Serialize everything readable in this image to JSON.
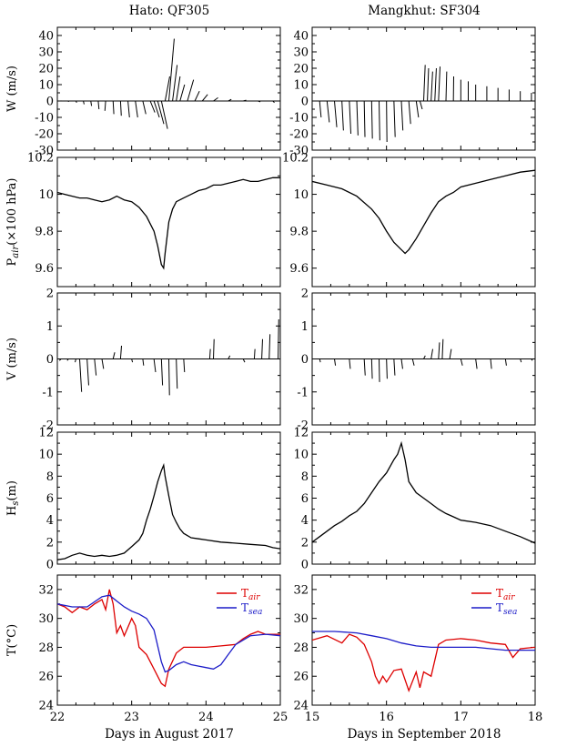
{
  "figure": {
    "left_title": "Hato: QF305",
    "right_title": "Mangkhut: SF304",
    "left_xlabel": "Days in August 2017",
    "right_xlabel": "Days in September 2018",
    "left_xticks": [
      "22",
      "23",
      "24",
      "25"
    ],
    "right_xticks": [
      "15",
      "16",
      "17",
      "18"
    ]
  },
  "chart_data": [
    {
      "type": "line",
      "variant": "stick-vector",
      "panel": "hato-wind",
      "ylabel": "W (m/s)",
      "xlim": [
        22,
        25
      ],
      "ylim": [
        -30,
        45
      ],
      "yticks": [
        "-30",
        "-20",
        "-10",
        "0",
        "10",
        "20",
        "30",
        "40"
      ],
      "sticks": [
        [
          22.05,
          0,
          0.3
        ],
        [
          22.15,
          0,
          -0.5
        ],
        [
          22.25,
          0.05,
          -1
        ],
        [
          22.35,
          0.05,
          -2
        ],
        [
          22.45,
          0.05,
          -3
        ],
        [
          22.55,
          0.05,
          -5
        ],
        [
          22.65,
          -0.05,
          -6
        ],
        [
          22.75,
          0.05,
          -8
        ],
        [
          22.85,
          0.05,
          -9
        ],
        [
          22.95,
          0.1,
          -10
        ],
        [
          23.05,
          0.15,
          -10
        ],
        [
          23.15,
          0.2,
          -8
        ],
        [
          23.25,
          0.3,
          -7
        ],
        [
          23.3,
          0.35,
          -10
        ],
        [
          23.35,
          0.4,
          -14
        ],
        [
          23.4,
          0.4,
          -17
        ],
        [
          23.45,
          0.3,
          15
        ],
        [
          23.5,
          0.35,
          38
        ],
        [
          23.55,
          0.3,
          22
        ],
        [
          23.6,
          0.25,
          15
        ],
        [
          23.65,
          0.3,
          10
        ],
        [
          23.75,
          0.4,
          13
        ],
        [
          23.85,
          0.3,
          6
        ],
        [
          23.95,
          0.35,
          4
        ],
        [
          24.1,
          0.3,
          2
        ],
        [
          24.3,
          0.2,
          1
        ],
        [
          24.5,
          0.2,
          0.5
        ],
        [
          24.7,
          0.15,
          -0.5
        ],
        [
          24.9,
          0.1,
          -1
        ],
        [
          25.0,
          0.05,
          -0.5
        ]
      ]
    },
    {
      "type": "line",
      "variant": "stick-vector",
      "panel": "mangkhut-wind",
      "ylabel": "W (m/s)",
      "xlim": [
        15,
        18
      ],
      "ylim": [
        -30,
        45
      ],
      "yticks": [
        "-30",
        "-20",
        "-10",
        "0",
        "10",
        "20",
        "30",
        "40"
      ],
      "sticks": [
        [
          15.0,
          -0.1,
          -8
        ],
        [
          15.1,
          0.1,
          -10
        ],
        [
          15.2,
          0.15,
          -13
        ],
        [
          15.3,
          0.15,
          -16
        ],
        [
          15.4,
          0.1,
          -18
        ],
        [
          15.5,
          0.1,
          -20
        ],
        [
          15.6,
          0.08,
          -21
        ],
        [
          15.7,
          0.05,
          -22
        ],
        [
          15.8,
          0.05,
          -23
        ],
        [
          15.9,
          0.05,
          -24
        ],
        [
          16.0,
          0.03,
          -25
        ],
        [
          16.1,
          0.08,
          -22
        ],
        [
          16.2,
          0.1,
          -18
        ],
        [
          16.3,
          0.12,
          -14
        ],
        [
          16.4,
          0.15,
          -10
        ],
        [
          16.45,
          0.15,
          -5
        ],
        [
          16.5,
          0.1,
          22
        ],
        [
          16.55,
          0.08,
          20
        ],
        [
          16.6,
          0.1,
          18
        ],
        [
          16.65,
          0.1,
          20
        ],
        [
          16.7,
          0.1,
          21
        ],
        [
          16.8,
          0.05,
          18
        ],
        [
          16.9,
          0.02,
          15
        ],
        [
          17.0,
          0.0,
          13
        ],
        [
          17.1,
          0.0,
          12
        ],
        [
          17.2,
          0.0,
          10
        ],
        [
          17.35,
          0.0,
          9
        ],
        [
          17.5,
          0.0,
          8
        ],
        [
          17.65,
          0.0,
          7
        ],
        [
          17.8,
          0.0,
          6
        ],
        [
          17.95,
          0.0,
          5
        ]
      ]
    },
    {
      "type": "line",
      "panel": "hato-pressure",
      "ylabel": "P_air(×100 hPa)",
      "ylabel_main": "P",
      "ylabel_sub": "air",
      "ylabel_rest": "(×100 hPa)",
      "xlim": [
        22,
        25
      ],
      "ylim": [
        9.5,
        10.2
      ],
      "yticks": [
        "9.6",
        "9.8",
        "10",
        "10.2"
      ],
      "x": [
        22.0,
        22.1,
        22.2,
        22.3,
        22.4,
        22.5,
        22.6,
        22.7,
        22.8,
        22.9,
        23.0,
        23.1,
        23.2,
        23.3,
        23.35,
        23.4,
        23.43,
        23.45,
        23.5,
        23.55,
        23.6,
        23.7,
        23.8,
        23.9,
        24.0,
        24.1,
        24.2,
        24.3,
        24.4,
        24.5,
        24.6,
        24.7,
        24.8,
        24.9,
        25.0
      ],
      "y": [
        10.01,
        10.0,
        9.99,
        9.98,
        9.98,
        9.97,
        9.96,
        9.97,
        9.99,
        9.97,
        9.96,
        9.93,
        9.88,
        9.8,
        9.72,
        9.62,
        9.6,
        9.68,
        9.85,
        9.92,
        9.96,
        9.98,
        10.0,
        10.02,
        10.03,
        10.05,
        10.05,
        10.06,
        10.07,
        10.08,
        10.07,
        10.07,
        10.08,
        10.09,
        10.09
      ]
    },
    {
      "type": "line",
      "panel": "mangkhut-pressure",
      "ylabel": "P_air(×100 hPa)",
      "xlim": [
        15,
        18
      ],
      "ylim": [
        9.5,
        10.2
      ],
      "yticks": [
        "9.6",
        "9.8",
        "10",
        "10.2"
      ],
      "x": [
        15.0,
        15.2,
        15.4,
        15.6,
        15.8,
        15.9,
        16.0,
        16.1,
        16.2,
        16.25,
        16.3,
        16.4,
        16.5,
        16.6,
        16.7,
        16.8,
        16.9,
        17.0,
        17.2,
        17.4,
        17.6,
        17.8,
        18.0
      ],
      "y": [
        10.07,
        10.05,
        10.03,
        9.99,
        9.92,
        9.87,
        9.8,
        9.74,
        9.7,
        9.68,
        9.7,
        9.76,
        9.83,
        9.9,
        9.96,
        9.99,
        10.01,
        10.04,
        10.06,
        10.08,
        10.1,
        10.12,
        10.13
      ]
    },
    {
      "type": "line",
      "variant": "stick-vector",
      "panel": "hato-current",
      "ylabel": "V (m/s)",
      "xlim": [
        22,
        25
      ],
      "ylim": [
        -2,
        2
      ],
      "yticks": [
        "-2",
        "-1",
        "0",
        "1",
        "2"
      ],
      "sticks": [
        [
          22.05,
          -0.1,
          -0.05
        ],
        [
          22.15,
          -0.08,
          -0.05
        ],
        [
          22.25,
          -0.05,
          -0.1
        ],
        [
          22.3,
          0.12,
          -1.0
        ],
        [
          22.4,
          0.1,
          -0.8
        ],
        [
          22.5,
          0.1,
          -0.5
        ],
        [
          22.6,
          0.1,
          -0.3
        ],
        [
          22.75,
          0.1,
          0.2
        ],
        [
          22.85,
          0.06,
          0.4
        ],
        [
          23.0,
          0.05,
          -0.1
        ],
        [
          23.15,
          0.05,
          -0.2
        ],
        [
          23.3,
          0.1,
          -0.4
        ],
        [
          23.4,
          0.07,
          -0.8
        ],
        [
          23.5,
          0.04,
          -1.1
        ],
        [
          23.6,
          0.06,
          -0.9
        ],
        [
          23.7,
          0.05,
          -0.4
        ],
        [
          24.05,
          0.04,
          0.3
        ],
        [
          24.1,
          0.04,
          0.6
        ],
        [
          24.3,
          0.1,
          0.1
        ],
        [
          24.5,
          0.1,
          -0.1
        ],
        [
          24.65,
          0.04,
          0.3
        ],
        [
          24.75,
          0.05,
          0.6
        ],
        [
          24.85,
          0.05,
          0.75
        ],
        [
          24.97,
          0.04,
          1.2
        ]
      ]
    },
    {
      "type": "line",
      "variant": "stick-vector",
      "panel": "mangkhut-current",
      "ylabel": "V (m/s)",
      "xlim": [
        15,
        18
      ],
      "ylim": [
        -2,
        2
      ],
      "yticks": [
        "-2",
        "-1",
        "0",
        "1",
        "2"
      ],
      "sticks": [
        [
          15.1,
          0.05,
          -0.1
        ],
        [
          15.3,
          0.06,
          -0.2
        ],
        [
          15.5,
          0.06,
          -0.3
        ],
        [
          15.7,
          0.06,
          -0.5
        ],
        [
          15.8,
          0.04,
          -0.6
        ],
        [
          15.9,
          0.03,
          -0.7
        ],
        [
          16.0,
          0.04,
          -0.6
        ],
        [
          16.1,
          0.06,
          -0.5
        ],
        [
          16.2,
          0.08,
          -0.3
        ],
        [
          16.35,
          0.1,
          -0.2
        ],
        [
          16.5,
          0.1,
          0.1
        ],
        [
          16.6,
          0.1,
          0.3
        ],
        [
          16.7,
          0.06,
          0.5
        ],
        [
          16.75,
          0.05,
          0.6
        ],
        [
          16.85,
          0.1,
          0.3
        ],
        [
          17.0,
          0.1,
          -0.2
        ],
        [
          17.2,
          0.08,
          -0.3
        ],
        [
          17.4,
          0.06,
          -0.3
        ],
        [
          17.6,
          0.06,
          -0.2
        ],
        [
          17.8,
          0.06,
          -0.1
        ],
        [
          17.95,
          0.06,
          -0.05
        ]
      ]
    },
    {
      "type": "line",
      "panel": "hato-waveheight",
      "ylabel": "Hs(m)",
      "ylabel_main": "H",
      "ylabel_sub": "s",
      "ylabel_rest": "(m)",
      "xlim": [
        22,
        25
      ],
      "ylim": [
        0,
        12
      ],
      "yticks": [
        "0",
        "2",
        "4",
        "6",
        "8",
        "10",
        "12"
      ],
      "x": [
        22.0,
        22.1,
        22.2,
        22.3,
        22.4,
        22.5,
        22.6,
        22.7,
        22.8,
        22.9,
        23.0,
        23.1,
        23.15,
        23.2,
        23.25,
        23.3,
        23.35,
        23.4,
        23.43,
        23.45,
        23.5,
        23.55,
        23.6,
        23.65,
        23.7,
        23.8,
        23.9,
        24.0,
        24.2,
        24.4,
        24.6,
        24.8,
        24.9,
        25.0
      ],
      "y": [
        0.4,
        0.5,
        0.8,
        1.0,
        0.8,
        0.7,
        0.8,
        0.7,
        0.8,
        1.0,
        1.6,
        2.2,
        2.8,
        4.0,
        5.0,
        6.2,
        7.5,
        8.5,
        9.0,
        8.0,
        6.2,
        4.5,
        3.8,
        3.2,
        2.8,
        2.4,
        2.3,
        2.2,
        2.0,
        1.9,
        1.8,
        1.7,
        1.5,
        1.4
      ]
    },
    {
      "type": "line",
      "panel": "mangkhut-waveheight",
      "ylabel": "Hs(m)",
      "xlim": [
        15,
        18
      ],
      "ylim": [
        0,
        12
      ],
      "yticks": [
        "0",
        "2",
        "4",
        "6",
        "8",
        "10",
        "12"
      ],
      "x": [
        15.0,
        15.1,
        15.2,
        15.3,
        15.4,
        15.5,
        15.6,
        15.7,
        15.8,
        15.9,
        16.0,
        16.1,
        16.15,
        16.2,
        16.25,
        16.3,
        16.4,
        16.5,
        16.6,
        16.7,
        16.8,
        16.9,
        17.0,
        17.2,
        17.4,
        17.6,
        17.8,
        18.0
      ],
      "y": [
        2.0,
        2.5,
        3.0,
        3.5,
        3.9,
        4.4,
        4.8,
        5.5,
        6.5,
        7.5,
        8.3,
        9.5,
        10.0,
        11.0,
        9.5,
        7.5,
        6.5,
        6.0,
        5.5,
        5.0,
        4.6,
        4.3,
        4.0,
        3.8,
        3.5,
        3.0,
        2.5,
        1.9
      ]
    },
    {
      "type": "line",
      "panel": "hato-temperature",
      "ylabel": "T(°C)",
      "xlim": [
        22,
        25
      ],
      "ylim": [
        24,
        33
      ],
      "yticks": [
        "24",
        "26",
        "28",
        "30",
        "32"
      ],
      "xticks": [
        "22",
        "23",
        "24",
        "25"
      ],
      "legend": "top-right",
      "series": [
        {
          "name": "T_air",
          "label_main": "T",
          "label_sub": "air",
          "color": "#dd0000",
          "x": [
            22.0,
            22.1,
            22.2,
            22.3,
            22.4,
            22.5,
            22.6,
            22.65,
            22.7,
            22.75,
            22.8,
            22.85,
            22.9,
            23.0,
            23.05,
            23.1,
            23.2,
            23.3,
            23.4,
            23.45,
            23.5,
            23.6,
            23.7,
            23.8,
            24.0,
            24.2,
            24.4,
            24.5,
            24.6,
            24.7,
            24.8,
            25.0
          ],
          "y": [
            31.0,
            30.8,
            30.4,
            30.8,
            30.6,
            31.0,
            31.3,
            30.6,
            32.0,
            31.0,
            29.0,
            29.5,
            28.8,
            30.0,
            29.5,
            28.0,
            27.5,
            26.5,
            25.5,
            25.3,
            26.5,
            27.6,
            28.0,
            28.0,
            28.0,
            28.1,
            28.2,
            28.6,
            28.9,
            29.1,
            28.9,
            28.9
          ]
        },
        {
          "name": "T_sea",
          "label_main": "T",
          "label_sub": "sea",
          "color": "#1c1cc8",
          "x": [
            22.0,
            22.2,
            22.4,
            22.6,
            22.7,
            22.8,
            22.9,
            23.0,
            23.1,
            23.2,
            23.3,
            23.4,
            23.45,
            23.5,
            23.6,
            23.7,
            23.8,
            23.9,
            24.0,
            24.1,
            24.2,
            24.3,
            24.4,
            24.6,
            24.8,
            25.0
          ],
          "y": [
            31.0,
            30.8,
            30.8,
            31.5,
            31.6,
            31.2,
            30.8,
            30.5,
            30.3,
            30.0,
            29.2,
            27.0,
            26.3,
            26.4,
            26.8,
            27.0,
            26.8,
            26.7,
            26.6,
            26.5,
            26.8,
            27.5,
            28.2,
            28.8,
            28.9,
            28.8
          ]
        }
      ]
    },
    {
      "type": "line",
      "panel": "mangkhut-temperature",
      "ylabel": "T(°C)",
      "xlim": [
        15,
        18
      ],
      "ylim": [
        24,
        33
      ],
      "yticks": [
        "24",
        "26",
        "28",
        "30",
        "32"
      ],
      "xticks": [
        "15",
        "16",
        "17",
        "18"
      ],
      "legend": "top-right",
      "series": [
        {
          "name": "T_air",
          "label_main": "T",
          "label_sub": "air",
          "color": "#dd0000",
          "x": [
            15.0,
            15.2,
            15.4,
            15.5,
            15.6,
            15.7,
            15.8,
            15.85,
            15.9,
            15.95,
            16.0,
            16.1,
            16.2,
            16.3,
            16.4,
            16.45,
            16.5,
            16.6,
            16.7,
            16.8,
            17.0,
            17.2,
            17.4,
            17.6,
            17.7,
            17.8,
            18.0
          ],
          "y": [
            28.5,
            28.8,
            28.3,
            28.9,
            28.7,
            28.2,
            27.0,
            26.0,
            25.5,
            26.0,
            25.6,
            26.4,
            26.5,
            25.0,
            26.3,
            25.2,
            26.3,
            26.0,
            28.2,
            28.5,
            28.6,
            28.5,
            28.3,
            28.2,
            27.3,
            27.9,
            28.0
          ]
        },
        {
          "name": "T_sea",
          "label_main": "T",
          "label_sub": "sea",
          "color": "#1c1cc8",
          "x": [
            15.0,
            15.3,
            15.6,
            15.8,
            16.0,
            16.2,
            16.4,
            16.6,
            16.8,
            17.0,
            17.2,
            17.4,
            17.6,
            17.8,
            18.0
          ],
          "y": [
            29.1,
            29.1,
            29.0,
            28.8,
            28.6,
            28.3,
            28.1,
            28.0,
            28.0,
            28.0,
            28.0,
            27.9,
            27.8,
            27.8,
            27.8
          ]
        }
      ]
    }
  ]
}
